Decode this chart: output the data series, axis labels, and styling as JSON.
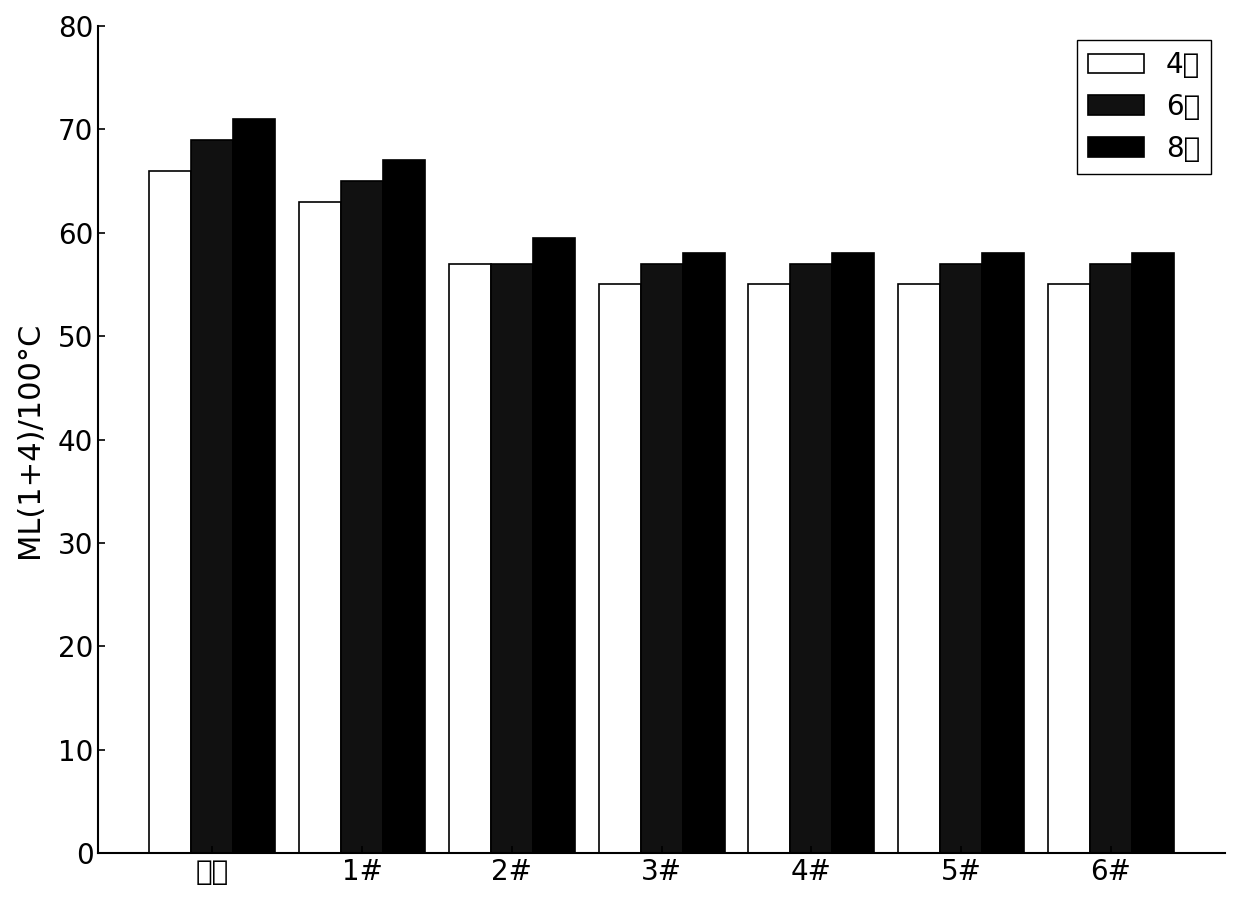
{
  "categories": [
    "空白",
    "1#",
    "2#",
    "3#",
    "4#",
    "5#",
    "6#"
  ],
  "series": {
    "4天": [
      66,
      63,
      57,
      55,
      55,
      55,
      55
    ],
    "6天": [
      69,
      65,
      57,
      57,
      57,
      57,
      57
    ],
    "8天": [
      71,
      67,
      59.5,
      58,
      58,
      58,
      58
    ]
  },
  "series_colors": {
    "4天": "#ffffff",
    "6天": "#111111",
    "8天": "#000000"
  },
  "series_edgecolors": {
    "4天": "#000000",
    "6天": "#000000",
    "8天": "#000000"
  },
  "legend_labels": [
    "4天",
    "6天",
    "8天"
  ],
  "ylabel": "ML(1+4)/100°C",
  "ylim": [
    0,
    80
  ],
  "yticks": [
    0,
    10,
    20,
    30,
    40,
    50,
    60,
    70,
    80
  ],
  "bar_width": 0.28,
  "background_color": "#ffffff",
  "legend_fontsize": 20,
  "axis_fontsize": 22,
  "tick_fontsize": 20,
  "figure_width": 12.4,
  "figure_height": 9.01,
  "dpi": 100
}
